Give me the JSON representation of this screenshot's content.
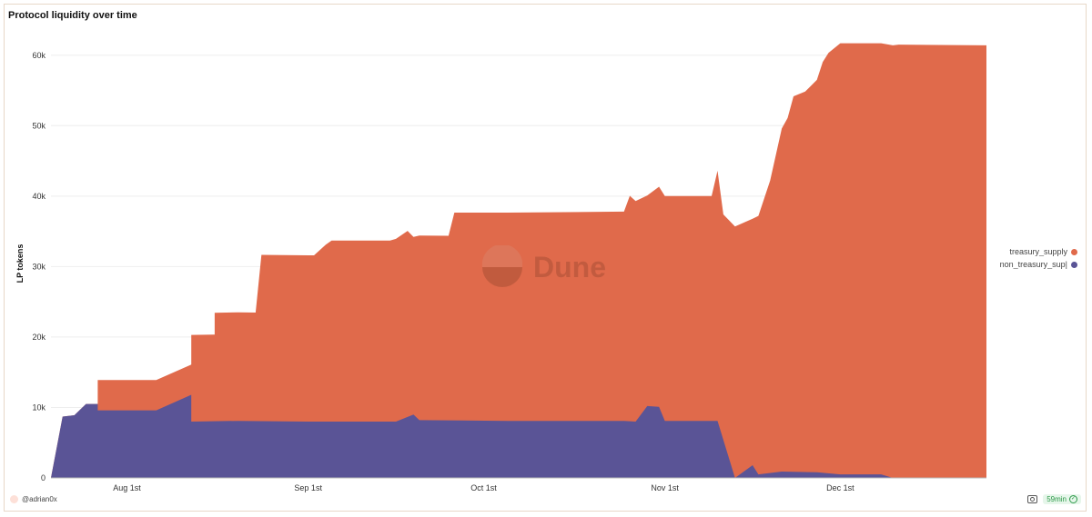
{
  "title": "Protocol liquidity over time",
  "watermark": "Dune",
  "author": "@adrian0x",
  "refresh_badge": "59min",
  "colors": {
    "treasury": "#e06a4b",
    "non_treasury": "#5a5496"
  },
  "legend": [
    {
      "label": "treasury_supply",
      "color": "#e06a4b",
      "icon": "legend-dot"
    },
    {
      "label": "non_treasury_sup|",
      "color": "#5a5496",
      "icon": "legend-dot"
    }
  ],
  "chart_data": {
    "type": "area",
    "stacked": true,
    "title": "Protocol liquidity over time",
    "xlabel": "",
    "ylabel": "LP tokens",
    "ylim": [
      0,
      65000
    ],
    "yticks": [
      0,
      10000,
      20000,
      30000,
      40000,
      50000,
      60000
    ],
    "ytick_labels": [
      "0",
      "10k",
      "20k",
      "30k",
      "40k",
      "50k",
      "60k"
    ],
    "xlim": [
      "2022-07-19",
      "2022-12-26"
    ],
    "xticks": [
      "2022-08-01",
      "2022-09-01",
      "2022-10-01",
      "2022-11-01",
      "2022-12-01"
    ],
    "xtick_labels": [
      "Aug 1st",
      "Sep 1st",
      "Oct 1st",
      "Nov 1st",
      "Dec 1st"
    ],
    "grid": true,
    "legend_position": "right",
    "series": [
      {
        "name": "non_treasury_sup|",
        "color": "#5a5496",
        "points": [
          [
            "2022-07-19",
            0
          ],
          [
            "2022-07-21",
            8700
          ],
          [
            "2022-07-23",
            8900
          ],
          [
            "2022-07-25",
            10500
          ],
          [
            "2022-07-27",
            10500
          ],
          [
            "2022-07-27",
            9600
          ],
          [
            "2022-08-06",
            9600
          ],
          [
            "2022-08-12",
            11800
          ],
          [
            "2022-08-12",
            8000
          ],
          [
            "2022-08-20",
            8100
          ],
          [
            "2022-09-01",
            8000
          ],
          [
            "2022-09-16",
            8000
          ],
          [
            "2022-09-19",
            9000
          ],
          [
            "2022-09-20",
            8200
          ],
          [
            "2022-10-05",
            8100
          ],
          [
            "2022-10-25",
            8100
          ],
          [
            "2022-10-27",
            8000
          ],
          [
            "2022-10-29",
            10200
          ],
          [
            "2022-10-31",
            10100
          ],
          [
            "2022-11-01",
            8100
          ],
          [
            "2022-11-10",
            8100
          ],
          [
            "2022-11-13",
            0
          ],
          [
            "2022-11-16",
            1800
          ],
          [
            "2022-11-17",
            500
          ],
          [
            "2022-11-21",
            900
          ],
          [
            "2022-11-27",
            800
          ],
          [
            "2022-12-01",
            500
          ],
          [
            "2022-12-08",
            500
          ],
          [
            "2022-12-10",
            0
          ],
          [
            "2022-12-26",
            0
          ]
        ]
      },
      {
        "name": "treasury_supply",
        "color": "#e06a4b",
        "points": [
          [
            "2022-07-19",
            0
          ],
          [
            "2022-07-27",
            0
          ],
          [
            "2022-07-27",
            4300
          ],
          [
            "2022-08-06",
            4300
          ],
          [
            "2022-08-12",
            4300
          ],
          [
            "2022-08-12",
            12300
          ],
          [
            "2022-08-16",
            12300
          ],
          [
            "2022-08-16",
            15400
          ],
          [
            "2022-08-23",
            15400
          ],
          [
            "2022-08-24",
            23600
          ],
          [
            "2022-09-02",
            23600
          ],
          [
            "2022-09-04",
            25100
          ],
          [
            "2022-09-05",
            25700
          ],
          [
            "2022-09-15",
            25700
          ],
          [
            "2022-09-18",
            26400
          ],
          [
            "2022-09-19",
            25200
          ],
          [
            "2022-09-20",
            26200
          ],
          [
            "2022-09-25",
            26200
          ],
          [
            "2022-09-26",
            29500
          ],
          [
            "2022-10-25",
            29700
          ],
          [
            "2022-10-26",
            32000
          ],
          [
            "2022-10-29",
            29900
          ],
          [
            "2022-11-01",
            31900
          ],
          [
            "2022-11-09",
            31900
          ],
          [
            "2022-11-10",
            35500
          ],
          [
            "2022-11-11",
            32000
          ],
          [
            "2022-11-13",
            35700
          ],
          [
            "2022-11-16",
            35000
          ],
          [
            "2022-11-17",
            36700
          ],
          [
            "2022-11-19",
            41500
          ],
          [
            "2022-11-21",
            48700
          ],
          [
            "2022-11-22",
            50200
          ],
          [
            "2022-11-23",
            53300
          ],
          [
            "2022-11-25",
            54000
          ],
          [
            "2022-11-27",
            55700
          ],
          [
            "2022-11-28",
            58300
          ],
          [
            "2022-11-29",
            59700
          ],
          [
            "2022-12-01",
            61200
          ],
          [
            "2022-12-08",
            61200
          ],
          [
            "2022-12-11",
            61500
          ],
          [
            "2022-12-26",
            61400
          ]
        ]
      }
    ]
  }
}
